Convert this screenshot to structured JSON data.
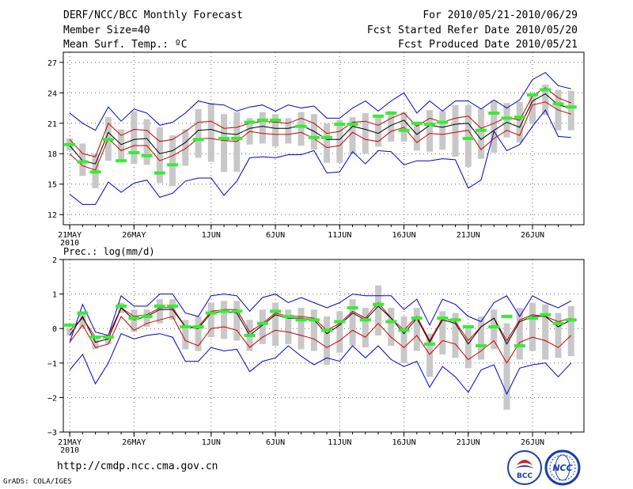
{
  "header": {
    "title": "DERF/NCC/BCC Monthly Forecast",
    "member_size": "Member Size=40",
    "variable": "Mean Surf. Temp.: ºC",
    "for_range": "For 2010/05/21-2010/06/29",
    "start_date": "Fcst Started Refer Date 2010/05/20",
    "produced_date": "Fcst Produced Date 2010/05/21"
  },
  "footer": {
    "url": "http://cmdp.ncc.cma.gov.cn",
    "grads": "GrADS: COLA/IGES",
    "logo1_label": "BCC",
    "logo2_label": "NCC"
  },
  "colors": {
    "mean": "#000000",
    "spread": "#cc0000",
    "extreme": "#0000cc",
    "box": "#c8c8c8",
    "obs": "#33ee33"
  },
  "chart_data": [
    {
      "type": "line",
      "title": "Mean Surf. Temp.: ºC",
      "xlabel": "",
      "ylabel": "",
      "ylim": [
        11,
        28
      ],
      "yticks": [
        12,
        15,
        18,
        21,
        24,
        27
      ],
      "xlim": [
        0.5,
        41
      ],
      "xticks": [
        {
          "day": 1,
          "label": "21MAY",
          "sub": "2010"
        },
        {
          "day": 6,
          "label": "26MAY"
        },
        {
          "day": 12,
          "label": "1JUN"
        },
        {
          "day": 17,
          "label": "6JUN"
        },
        {
          "day": 22,
          "label": "11JUN"
        },
        {
          "day": 27,
          "label": "16JUN"
        },
        {
          "day": 32,
          "label": "21JUN"
        },
        {
          "day": 37,
          "label": "26JUN"
        }
      ],
      "days": [
        1,
        2,
        3,
        4,
        5,
        6,
        7,
        8,
        9,
        10,
        11,
        12,
        13,
        14,
        15,
        16,
        17,
        18,
        19,
        20,
        21,
        22,
        23,
        24,
        25,
        26,
        27,
        28,
        29,
        30,
        31,
        32,
        33,
        34,
        35,
        36,
        37,
        38,
        39,
        40
      ],
      "series": [
        {
          "name": "max",
          "color": "#0000cc",
          "values": [
            22.0,
            21.0,
            20.3,
            22.6,
            21.2,
            22.4,
            22.0,
            20.8,
            21.1,
            22.0,
            23.2,
            22.9,
            22.8,
            22.2,
            22.6,
            22.8,
            22.2,
            22.8,
            22.5,
            22.7,
            21.5,
            21.5,
            22.5,
            23.2,
            22.2,
            23.2,
            24.0,
            22.0,
            23.2,
            22.2,
            23.2,
            23.2,
            22.4,
            23.3,
            22.5,
            23.3,
            25.3,
            26.0,
            24.7,
            24.4
          ]
        },
        {
          "name": "upper",
          "color": "#cc0000",
          "values": [
            19.4,
            18.0,
            17.7,
            21.0,
            19.8,
            20.4,
            20.3,
            19.2,
            19.4,
            20.2,
            21.1,
            21.2,
            20.5,
            20.6,
            21.0,
            21.2,
            21.1,
            21.0,
            21.5,
            21.0,
            20.0,
            20.2,
            21.1,
            21.2,
            20.8,
            21.5,
            22.0,
            20.7,
            21.5,
            21.1,
            21.5,
            21.7,
            20.5,
            21.0,
            21.6,
            21.3,
            23.7,
            24.5,
            23.5,
            23.0
          ]
        },
        {
          "name": "mean",
          "color": "#000000",
          "values": [
            18.8,
            17.3,
            17.0,
            20.1,
            18.9,
            19.4,
            19.5,
            18.0,
            18.3,
            19.1,
            20.3,
            20.4,
            20.0,
            19.9,
            20.5,
            20.7,
            20.5,
            20.5,
            20.8,
            20.2,
            19.4,
            19.4,
            20.7,
            20.4,
            20.0,
            20.8,
            21.3,
            19.9,
            20.8,
            20.6,
            20.9,
            21.0,
            19.4,
            20.3,
            21.1,
            20.6,
            23.2,
            23.9,
            22.8,
            22.5
          ]
        },
        {
          "name": "lower",
          "color": "#cc0000",
          "values": [
            18.0,
            16.8,
            16.4,
            19.5,
            18.3,
            18.8,
            18.8,
            17.3,
            17.8,
            18.5,
            19.5,
            19.5,
            19.3,
            19.2,
            20.2,
            20.0,
            19.9,
            19.9,
            20.1,
            19.5,
            18.6,
            18.8,
            20.1,
            19.4,
            19.2,
            20.2,
            20.6,
            19.1,
            20.0,
            19.9,
            20.1,
            20.3,
            18.4,
            19.5,
            20.3,
            19.8,
            22.8,
            23.1,
            22.3,
            21.9
          ]
        },
        {
          "name": "min",
          "color": "#0000cc",
          "values": [
            14.0,
            13.0,
            13.0,
            15.2,
            14.2,
            15.1,
            15.4,
            13.7,
            14.1,
            15.3,
            15.6,
            15.6,
            13.9,
            15.3,
            17.6,
            17.7,
            17.6,
            17.9,
            17.9,
            18.3,
            16.1,
            16.2,
            18.2,
            17.0,
            18.3,
            18.2,
            16.9,
            17.3,
            17.3,
            17.5,
            17.4,
            14.6,
            15.4,
            20.2,
            18.3,
            18.9,
            20.7,
            22.3,
            19.7,
            19.6
          ]
        }
      ],
      "boxes": {
        "low": [
          18.3,
          15.8,
          14.6,
          17.3,
          17.3,
          17.0,
          16.9,
          15.1,
          14.8,
          16.8,
          17.6,
          17.2,
          16.2,
          16.2,
          18.9,
          19.0,
          18.7,
          19.0,
          18.8,
          18.4,
          17.1,
          17.1,
          18.0,
          18.0,
          18.7,
          19.2,
          19.2,
          18.3,
          18.2,
          18.4,
          17.7,
          16.7,
          17.5,
          18.1,
          19.6,
          19.1,
          21.0,
          21.8,
          20.3,
          20.3
        ],
        "high": [
          19.5,
          19.0,
          18.0,
          21.6,
          20.4,
          22.2,
          21.4,
          20.6,
          19.8,
          20.4,
          22.4,
          23.0,
          21.9,
          22.1,
          21.5,
          22.1,
          21.9,
          21.5,
          22.1,
          21.9,
          21.0,
          21.3,
          21.6,
          22.0,
          21.6,
          22.2,
          22.1,
          21.1,
          22.3,
          22.2,
          22.8,
          22.8,
          22.4,
          23.2,
          23.0,
          23.1,
          23.9,
          24.8,
          24.3,
          24.2
        ]
      },
      "observed": [
        18.9,
        17.2,
        16.2,
        19.4,
        17.3,
        18.1,
        17.8,
        16.1,
        16.9,
        null,
        19.4,
        null,
        19.5,
        19.5,
        21.1,
        21.3,
        21.3,
        null,
        20.7,
        19.6,
        19.6,
        20.9,
        20.9,
        null,
        21.7,
        22.0,
        20.3,
        21.0,
        20.9,
        21.1,
        null,
        19.5,
        20.3,
        22.0,
        21.5,
        21.6,
        23.8,
        24.3,
        22.9,
        22.6
      ]
    },
    {
      "type": "line",
      "title": "Prec.: log(mm/d)",
      "xlabel": "",
      "ylabel": "",
      "ylim": [
        -3,
        2
      ],
      "yticks": [
        -3,
        -2,
        -1,
        0,
        1,
        2
      ],
      "xlim": [
        0.5,
        41
      ],
      "xticks": [
        {
          "day": 1,
          "label": "21MAY",
          "sub": "2010"
        },
        {
          "day": 6,
          "label": "26MAY"
        },
        {
          "day": 12,
          "label": "1JUN"
        },
        {
          "day": 17,
          "label": "6JUN"
        },
        {
          "day": 22,
          "label": "11JUN"
        },
        {
          "day": 27,
          "label": "16JUN"
        },
        {
          "day": 32,
          "label": "21JUN"
        },
        {
          "day": 37,
          "label": "26JUN"
        }
      ],
      "days": [
        1,
        2,
        3,
        4,
        5,
        6,
        7,
        8,
        9,
        10,
        11,
        12,
        13,
        14,
        15,
        16,
        17,
        18,
        19,
        20,
        21,
        22,
        23,
        24,
        25,
        26,
        27,
        28,
        29,
        30,
        31,
        32,
        33,
        34,
        35,
        36,
        37,
        38,
        39,
        40
      ],
      "series": [
        {
          "name": "max",
          "color": "#0000cc",
          "values": [
            -0.4,
            0.7,
            -0.1,
            -0.2,
            0.95,
            0.65,
            0.65,
            1.0,
            1.0,
            0.45,
            0.35,
            0.95,
            1.0,
            0.95,
            0.5,
            0.9,
            1.0,
            0.75,
            0.9,
            0.75,
            0.6,
            0.75,
            1.0,
            0.95,
            0.95,
            0.95,
            0.55,
            0.85,
            0.1,
            0.85,
            0.7,
            0.35,
            0.2,
            0.75,
            0.95,
            0.35,
            0.95,
            0.75,
            0.6,
            0.8
          ]
        },
        {
          "name": "upper",
          "color": "#cc0000",
          "values": [
            -0.05,
            0.3,
            -0.25,
            -0.2,
            0.6,
            0.35,
            0.4,
            0.6,
            0.6,
            0.05,
            0.05,
            0.5,
            0.55,
            0.55,
            -0.1,
            0.15,
            0.45,
            0.35,
            0.35,
            0.3,
            -0.05,
            0.15,
            0.5,
            0.3,
            0.75,
            0.3,
            -0.05,
            0.35,
            -0.35,
            0.3,
            0.2,
            -0.35,
            0.05,
            0.3,
            -0.35,
            0.25,
            0.4,
            0.35,
            0.2,
            0.3
          ]
        },
        {
          "name": "mean",
          "color": "#000000",
          "values": [
            -0.2,
            0.35,
            -0.4,
            -0.3,
            0.6,
            0.25,
            0.35,
            0.55,
            0.55,
            0.05,
            0.0,
            0.45,
            0.5,
            0.45,
            -0.2,
            0.1,
            0.4,
            0.3,
            0.3,
            0.25,
            -0.15,
            0.1,
            0.45,
            0.25,
            0.65,
            0.3,
            -0.15,
            0.3,
            -0.4,
            0.25,
            0.15,
            -0.45,
            0.05,
            0.3,
            -0.45,
            0.2,
            0.35,
            0.35,
            0.05,
            0.25
          ]
        },
        {
          "name": "lower",
          "color": "#cc0000",
          "values": [
            -0.4,
            0.1,
            -0.55,
            -0.45,
            0.35,
            -0.05,
            0.15,
            0.25,
            0.35,
            -0.35,
            -0.5,
            0.0,
            0.05,
            -0.05,
            -0.55,
            -0.25,
            -0.05,
            -0.1,
            -0.2,
            -0.3,
            -0.55,
            -0.35,
            -0.05,
            -0.25,
            0.15,
            -0.25,
            -0.55,
            -0.2,
            -0.75,
            -0.35,
            -0.45,
            -0.9,
            -0.65,
            -0.35,
            -1.0,
            -0.4,
            -0.25,
            -0.35,
            -0.55,
            -0.2
          ]
        },
        {
          "name": "min",
          "color": "#0000cc",
          "values": [
            -1.2,
            -0.75,
            -1.6,
            -1.0,
            -0.15,
            -0.3,
            -0.2,
            -0.15,
            -0.25,
            -0.95,
            -0.95,
            -0.55,
            -0.65,
            -0.6,
            -1.25,
            -0.95,
            -0.85,
            -0.5,
            -0.8,
            -1.05,
            -0.85,
            -0.95,
            -0.5,
            -0.85,
            -0.5,
            -0.9,
            -1.1,
            -0.95,
            -1.7,
            -1.1,
            -1.4,
            -1.85,
            -1.2,
            -1.05,
            -1.9,
            -1.15,
            -1.05,
            -1.0,
            -1.4,
            -1.0
          ]
        }
      ],
      "boxes": {
        "low": [
          -0.2,
          0.0,
          -0.6,
          -0.45,
          0.45,
          -0.1,
          0.05,
          0.15,
          0.25,
          -0.6,
          -0.65,
          -0.25,
          -0.3,
          -0.35,
          -0.65,
          -0.45,
          -0.5,
          -0.45,
          -0.6,
          -0.65,
          -1.05,
          -0.7,
          -0.5,
          -0.55,
          -0.2,
          -0.5,
          -1.0,
          -0.65,
          -1.4,
          -0.75,
          -0.85,
          -1.15,
          -0.9,
          -0.6,
          -2.35,
          -0.9,
          -0.65,
          -0.9,
          -0.85,
          -0.8
        ],
        "high": [
          0.0,
          0.5,
          -0.2,
          -0.2,
          0.75,
          0.55,
          0.55,
          0.85,
          0.85,
          0.25,
          0.35,
          0.75,
          0.8,
          0.8,
          0.25,
          0.55,
          0.75,
          0.55,
          0.6,
          0.55,
          0.35,
          0.5,
          0.85,
          0.6,
          1.25,
          0.6,
          0.35,
          0.6,
          -0.15,
          0.5,
          0.45,
          0.0,
          0.35,
          0.55,
          0.15,
          0.6,
          0.75,
          0.7,
          0.45,
          0.65
        ]
      },
      "observed": [
        0.1,
        0.45,
        -0.25,
        -0.25,
        0.65,
        0.3,
        0.35,
        0.65,
        0.65,
        0.05,
        0.05,
        0.45,
        0.5,
        0.5,
        -0.2,
        0.15,
        0.5,
        0.35,
        0.25,
        0.25,
        -0.05,
        0.2,
        0.6,
        0.25,
        0.7,
        0.2,
        -0.05,
        0.3,
        -0.45,
        0.3,
        0.25,
        0.05,
        -0.5,
        0.05,
        0.35,
        -0.5,
        0.3,
        0.4,
        0.15,
        0.25
      ]
    }
  ]
}
